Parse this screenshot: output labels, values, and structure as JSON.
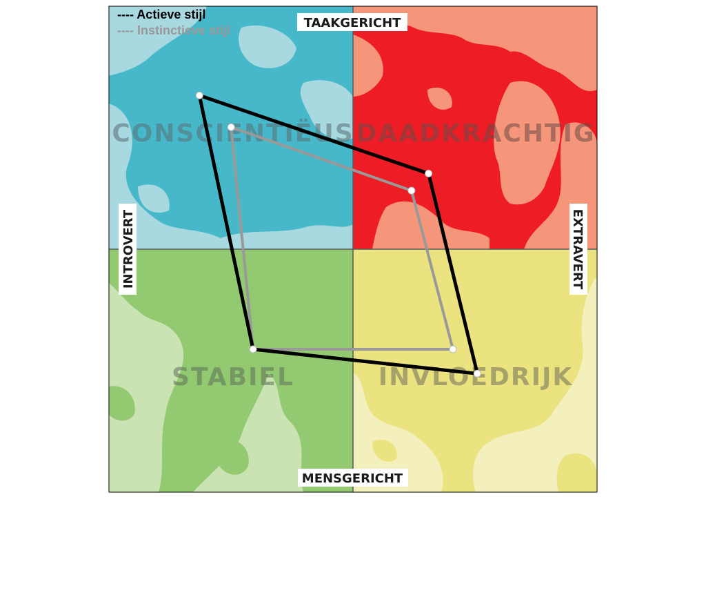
{
  "chart_data": {
    "type": "radar",
    "quadrants": [
      {
        "key": "top_left",
        "label": "CONSCIENTIËUS",
        "color": "#47b8c9",
        "light_color": "#a8d8e0",
        "text_color": "#5a6e72"
      },
      {
        "key": "top_right",
        "label": "DAADKRACHTIG",
        "color": "#ee1c25",
        "light_color": "#f5967a",
        "text_color": "#6b4a47"
      },
      {
        "key": "bottom_left",
        "label": "STABIEL",
        "color": "#92c971",
        "light_color": "#c9e3b3",
        "text_color": "#5c6f55"
      },
      {
        "key": "bottom_right",
        "label": "INVLOEDRIJK",
        "color": "#ebe380",
        "light_color": "#f3f0bd",
        "text_color": "#6f6d58"
      }
    ],
    "axes": {
      "top": "TAAKGERICHT",
      "bottom": "MENSGERICHT",
      "left": "INTROVERT",
      "right": "EXTRAVERT"
    },
    "axis_order": [
      "conscientieus",
      "daadkrachtig",
      "invloedrijk",
      "stabiel"
    ],
    "value_range": [
      0,
      1
    ],
    "series": [
      {
        "name": "Actieve stijl",
        "color": "#000000",
        "legend_label": "---- Actieve stijl",
        "values": [
          0.63,
          0.31,
          0.51,
          0.41
        ]
      },
      {
        "name": "Instinctieve stijl",
        "color": "#999999",
        "legend_label": "---- Instinctieve stijl",
        "values": [
          0.5,
          0.24,
          0.41,
          0.41
        ]
      }
    ],
    "legend_position": "top-left",
    "grid": false
  }
}
